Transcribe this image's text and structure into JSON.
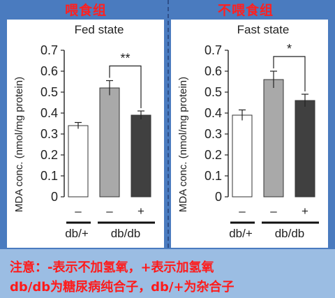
{
  "headers": {
    "left": "喂食组",
    "right": "不喂食组"
  },
  "note": {
    "line1": "注意：-表示不加氢氧，+表示加氢氧",
    "line2": "db/db为糖尿病纯合子，db/+为杂合子"
  },
  "chart_data": [
    {
      "type": "bar",
      "title": "Fed state",
      "ylabel": "MDA conc. (nmol/mg protein)",
      "ylim": [
        0,
        0.7
      ],
      "yticks": [
        "0",
        "0.1",
        "0.2",
        "0.3",
        "0.4",
        "0.5",
        "0.6",
        "0.7"
      ],
      "categories": [
        "–",
        "–",
        "+"
      ],
      "groups": [
        "db/+",
        "db/db"
      ],
      "values": [
        0.34,
        0.52,
        0.39
      ],
      "errors": [
        0.015,
        0.035,
        0.02
      ],
      "colors": [
        "#ffffff",
        "#a9a9a9",
        "#404040"
      ],
      "significance": "**"
    },
    {
      "type": "bar",
      "title": "Fast state",
      "ylabel": "MDA conc. (nmol/mg protein)",
      "ylim": [
        0,
        0.7
      ],
      "yticks": [
        "0",
        "0.1",
        "0.2",
        "0.3",
        "0.4",
        "0.5",
        "0.6",
        "0.7"
      ],
      "categories": [
        "–",
        "–",
        "+"
      ],
      "groups": [
        "db/+",
        "db/db"
      ],
      "values": [
        0.39,
        0.56,
        0.46
      ],
      "errors": [
        0.025,
        0.04,
        0.03
      ],
      "colors": [
        "#ffffff",
        "#a9a9a9",
        "#404040"
      ],
      "significance": "*"
    }
  ]
}
